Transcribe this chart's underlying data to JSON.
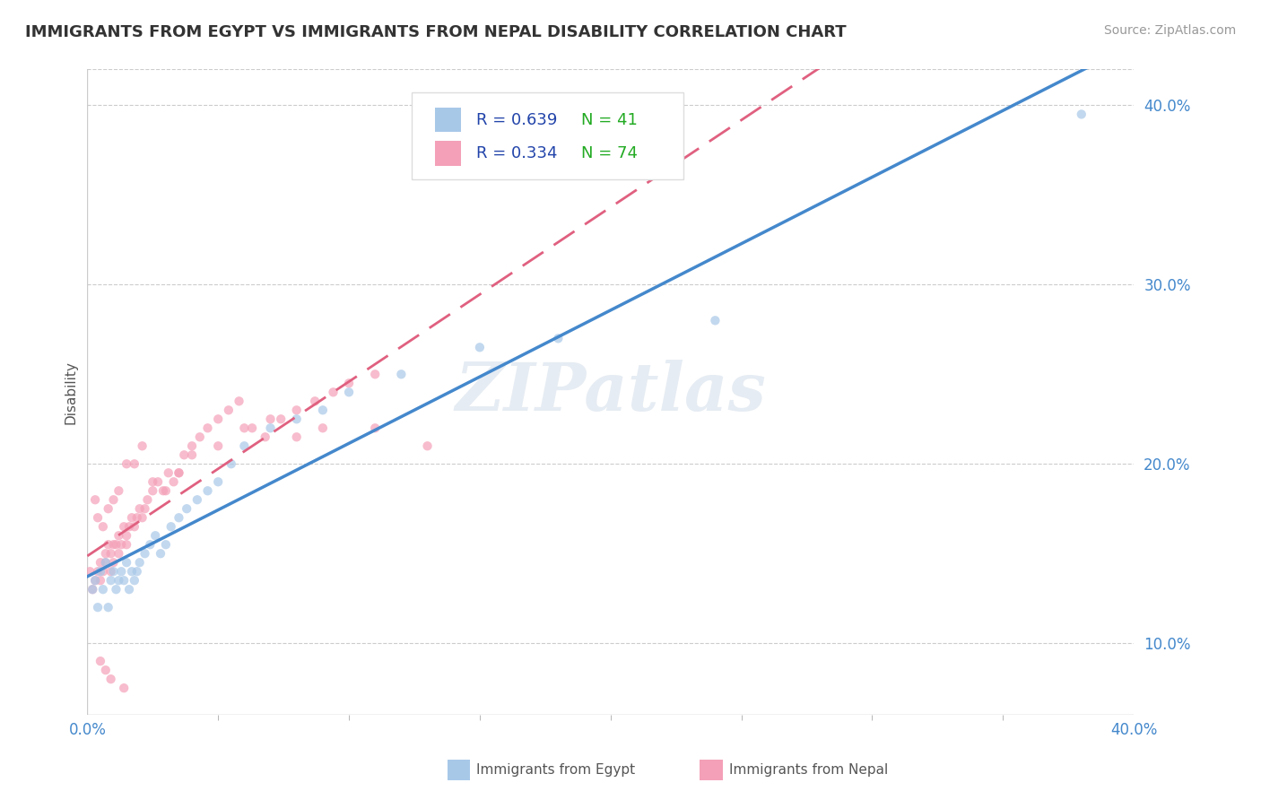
{
  "title": "IMMIGRANTS FROM EGYPT VS IMMIGRANTS FROM NEPAL DISABILITY CORRELATION CHART",
  "source": "Source: ZipAtlas.com",
  "ylabel": "Disability",
  "right_yticks": [
    0.1,
    0.2,
    0.3,
    0.4
  ],
  "right_yticklabels": [
    "10.0%",
    "20.0%",
    "30.0%",
    "40.0%"
  ],
  "xmin": 0.0,
  "xmax": 0.4,
  "ymin": 0.06,
  "ymax": 0.42,
  "egypt_color": "#a8c8e8",
  "nepal_color": "#f4a0b8",
  "egypt_line_color": "#4488cc",
  "nepal_line_color": "#e06080",
  "egypt_R": 0.639,
  "egypt_N": 41,
  "nepal_R": 0.334,
  "nepal_N": 74,
  "legend_R_color": "#2244aa",
  "legend_N_color": "#22aa22",
  "watermark": "ZIPatlas",
  "egypt_scatter_x": [
    0.002,
    0.003,
    0.004,
    0.005,
    0.006,
    0.007,
    0.008,
    0.009,
    0.01,
    0.011,
    0.012,
    0.013,
    0.014,
    0.015,
    0.016,
    0.017,
    0.018,
    0.019,
    0.02,
    0.022,
    0.024,
    0.026,
    0.028,
    0.03,
    0.032,
    0.035,
    0.038,
    0.042,
    0.046,
    0.05,
    0.055,
    0.06,
    0.07,
    0.08,
    0.09,
    0.1,
    0.12,
    0.15,
    0.18,
    0.24,
    0.38
  ],
  "egypt_scatter_y": [
    0.13,
    0.135,
    0.12,
    0.14,
    0.13,
    0.145,
    0.12,
    0.135,
    0.14,
    0.13,
    0.135,
    0.14,
    0.135,
    0.145,
    0.13,
    0.14,
    0.135,
    0.14,
    0.145,
    0.15,
    0.155,
    0.16,
    0.15,
    0.155,
    0.165,
    0.17,
    0.175,
    0.18,
    0.185,
    0.19,
    0.2,
    0.21,
    0.22,
    0.225,
    0.23,
    0.24,
    0.25,
    0.265,
    0.27,
    0.28,
    0.395
  ],
  "nepal_scatter_x": [
    0.001,
    0.002,
    0.003,
    0.004,
    0.005,
    0.005,
    0.006,
    0.007,
    0.007,
    0.008,
    0.009,
    0.009,
    0.01,
    0.01,
    0.011,
    0.012,
    0.012,
    0.013,
    0.014,
    0.015,
    0.015,
    0.016,
    0.017,
    0.018,
    0.019,
    0.02,
    0.021,
    0.022,
    0.023,
    0.025,
    0.027,
    0.029,
    0.031,
    0.033,
    0.035,
    0.037,
    0.04,
    0.043,
    0.046,
    0.05,
    0.054,
    0.058,
    0.063,
    0.068,
    0.074,
    0.08,
    0.087,
    0.094,
    0.1,
    0.11,
    0.003,
    0.004,
    0.006,
    0.008,
    0.01,
    0.012,
    0.015,
    0.018,
    0.021,
    0.025,
    0.03,
    0.035,
    0.04,
    0.05,
    0.06,
    0.07,
    0.08,
    0.09,
    0.11,
    0.13,
    0.005,
    0.007,
    0.009,
    0.014
  ],
  "nepal_scatter_y": [
    0.14,
    0.13,
    0.135,
    0.14,
    0.145,
    0.135,
    0.14,
    0.15,
    0.145,
    0.155,
    0.14,
    0.15,
    0.155,
    0.145,
    0.155,
    0.15,
    0.16,
    0.155,
    0.165,
    0.16,
    0.155,
    0.165,
    0.17,
    0.165,
    0.17,
    0.175,
    0.17,
    0.175,
    0.18,
    0.185,
    0.19,
    0.185,
    0.195,
    0.19,
    0.195,
    0.205,
    0.21,
    0.215,
    0.22,
    0.225,
    0.23,
    0.235,
    0.22,
    0.215,
    0.225,
    0.23,
    0.235,
    0.24,
    0.245,
    0.25,
    0.18,
    0.17,
    0.165,
    0.175,
    0.18,
    0.185,
    0.2,
    0.2,
    0.21,
    0.19,
    0.185,
    0.195,
    0.205,
    0.21,
    0.22,
    0.225,
    0.215,
    0.22,
    0.22,
    0.21,
    0.09,
    0.085,
    0.08,
    0.075
  ]
}
